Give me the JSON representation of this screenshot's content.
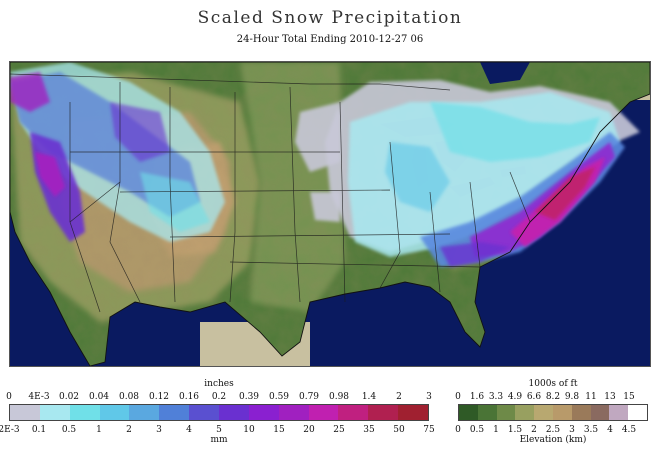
{
  "title": "Scaled Snow Precipitation",
  "subtitle": "24-Hour Total Ending 2010-12-27 06",
  "colors": {
    "ocean": "#0a1a60",
    "land_low": "#3e6a30",
    "land_mid": "#8aa060",
    "land_high": "#b09a6a",
    "outside": "#c8c0a0",
    "border": "#222222"
  },
  "precip_legend": {
    "title_top": "inches",
    "title_bottom": "mm",
    "top_ticks": [
      "0",
      "4E-3",
      "0.02",
      "0.04",
      "0.08",
      "0.12",
      "0.16",
      "0.2",
      "0.39",
      "0.59",
      "0.79",
      "0.98",
      "1.4",
      "2",
      "3"
    ],
    "bottom_ticks": [
      "2E-3",
      "0.1",
      "0.5",
      "1",
      "2",
      "3",
      "4",
      "5",
      "10",
      "15",
      "20",
      "25",
      "35",
      "50",
      "75"
    ],
    "colors": [
      "#c8c8d8",
      "#a8e8f0",
      "#70e0e8",
      "#60c8e8",
      "#5aa8e0",
      "#5080d8",
      "#5a50d0",
      "#6a30d0",
      "#8a20d0",
      "#a020c0",
      "#c020b0",
      "#c02080",
      "#b02050",
      "#a02030"
    ]
  },
  "elev_legend": {
    "title_top": "1000s of ft",
    "title_bottom": "Elevation (km)",
    "top_ticks": [
      "0",
      "1.6",
      "3.3",
      "4.9",
      "6.6",
      "8.2",
      "9.8",
      "11",
      "13",
      "15"
    ],
    "bottom_ticks": [
      "0",
      "0.5",
      "1",
      "1.5",
      "2",
      "2.5",
      "3",
      "3.5",
      "4",
      "4.5"
    ],
    "colors": [
      "#2f5a26",
      "#4a7436",
      "#6e8a48",
      "#98a060",
      "#b8a870",
      "#b89a6a",
      "#9a7a5a",
      "#8a6a60",
      "#c0a8c0",
      "#ffffff"
    ]
  }
}
